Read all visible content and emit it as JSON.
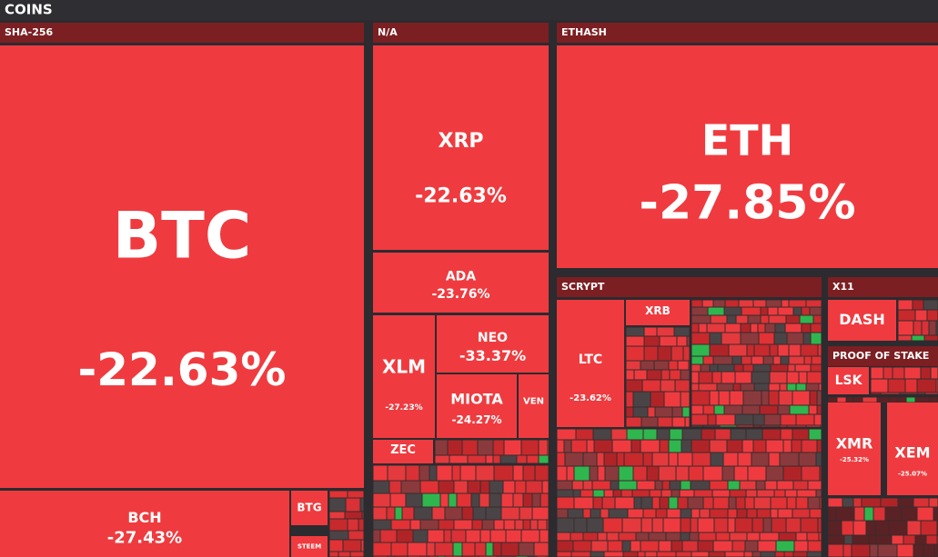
{
  "header": {
    "title": "COINS"
  },
  "groups": [
    {
      "name": "SHA-256",
      "tiles": [
        {
          "symbol": "BTC",
          "change": "-22.63%"
        },
        {
          "symbol": "BCH",
          "change": "-27.43%"
        },
        {
          "symbol": "BTG"
        },
        {
          "symbol": "STEEM"
        }
      ]
    },
    {
      "name": "N/A",
      "tiles": [
        {
          "symbol": "XRP",
          "change": "-22.63%"
        },
        {
          "symbol": "ADA",
          "change": "-23.76%"
        },
        {
          "symbol": "XLM",
          "change": "-27.23%"
        },
        {
          "symbol": "NEO",
          "change": "-33.37%"
        },
        {
          "symbol": "MIOTA",
          "change": "-24.27%"
        },
        {
          "symbol": "VEN"
        },
        {
          "symbol": "ZEC"
        }
      ]
    },
    {
      "name": "ETHASH",
      "tiles": [
        {
          "symbol": "ETH",
          "change": "-27.85%"
        }
      ]
    },
    {
      "name": "SCRYPT",
      "tiles": [
        {
          "symbol": "LTC",
          "change": "-23.62%"
        },
        {
          "symbol": "XRB"
        }
      ]
    },
    {
      "name": "X11",
      "tiles": [
        {
          "symbol": "DASH"
        }
      ]
    },
    {
      "name": "PROOF OF STAKE",
      "tiles": [
        {
          "symbol": "LSK"
        }
      ]
    }
  ],
  "other_tiles": [
    {
      "symbol": "XMR",
      "change": "-25.32%"
    },
    {
      "symbol": "XEM",
      "change": "-25.07%"
    }
  ]
}
